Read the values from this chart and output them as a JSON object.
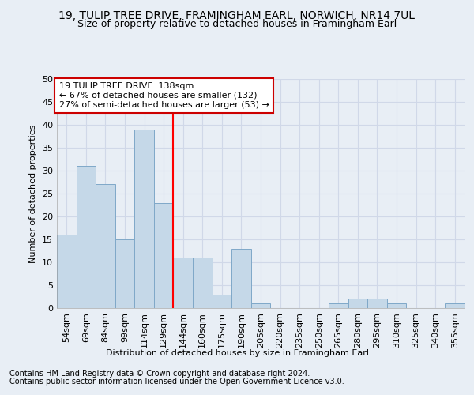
{
  "title": "19, TULIP TREE DRIVE, FRAMINGHAM EARL, NORWICH, NR14 7UL",
  "subtitle": "Size of property relative to detached houses in Framingham Earl",
  "xlabel": "Distribution of detached houses by size in Framingham Earl",
  "ylabel": "Number of detached properties",
  "footnote1": "Contains HM Land Registry data © Crown copyright and database right 2024.",
  "footnote2": "Contains public sector information licensed under the Open Government Licence v3.0.",
  "categories": [
    "54sqm",
    "69sqm",
    "84sqm",
    "99sqm",
    "114sqm",
    "129sqm",
    "144sqm",
    "160sqm",
    "175sqm",
    "190sqm",
    "205sqm",
    "220sqm",
    "235sqm",
    "250sqm",
    "265sqm",
    "280sqm",
    "295sqm",
    "310sqm",
    "325sqm",
    "340sqm",
    "355sqm"
  ],
  "values": [
    16,
    31,
    27,
    15,
    39,
    23,
    11,
    11,
    3,
    13,
    1,
    0,
    0,
    0,
    1,
    2,
    2,
    1,
    0,
    0,
    1
  ],
  "bar_color": "#c5d8e8",
  "bar_edge_color": "#7fa8c8",
  "grid_color": "#d0d8e8",
  "background_color": "#e8eef5",
  "red_line_x": 5.5,
  "annotation_text": "19 TULIP TREE DRIVE: 138sqm\n← 67% of detached houses are smaller (132)\n27% of semi-detached houses are larger (53) →",
  "annotation_box_color": "#ffffff",
  "annotation_border_color": "#cc0000",
  "ylim": [
    0,
    50
  ],
  "yticks": [
    0,
    5,
    10,
    15,
    20,
    25,
    30,
    35,
    40,
    45,
    50
  ],
  "title_fontsize": 10,
  "subtitle_fontsize": 9,
  "axis_fontsize": 8,
  "tick_fontsize": 8,
  "annotation_fontsize": 8,
  "footnote_fontsize": 7
}
